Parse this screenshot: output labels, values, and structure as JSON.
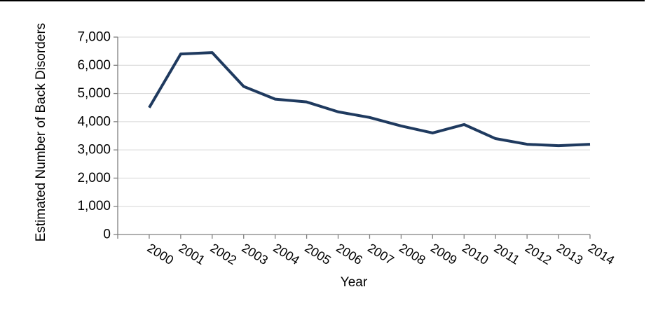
{
  "chart_data": {
    "type": "line",
    "title": "",
    "xlabel": "Year",
    "ylabel": "Estimated Number of Back Disorders",
    "categories": [
      "2000",
      "2001",
      "2002",
      "2003",
      "2004",
      "2005",
      "2006",
      "2007",
      "2008",
      "2009",
      "2010",
      "2011",
      "2012",
      "2013",
      "2014"
    ],
    "series": [
      {
        "name": "Estimated Number of Back Disorders",
        "color": "#1F3A5F",
        "values": [
          4500,
          6400,
          6450,
          5250,
          4800,
          4700,
          4350,
          4150,
          3850,
          3600,
          3900,
          3400,
          3200,
          3150,
          3200
        ]
      }
    ],
    "ylim": [
      0,
      7000
    ],
    "ytick_step": 1000,
    "ytick_labels": [
      "0",
      "1,000",
      "2,000",
      "3,000",
      "4,000",
      "5,000",
      "6,000",
      "7,000"
    ],
    "grid": true,
    "legend_position": "none",
    "x_label_rotation_deg": 32
  },
  "style": {
    "background": "#FFFFFF",
    "top_border_color": "#000000",
    "grid_color": "#D6D6D6",
    "axis_color": "#808080",
    "text_color": "#000000"
  }
}
